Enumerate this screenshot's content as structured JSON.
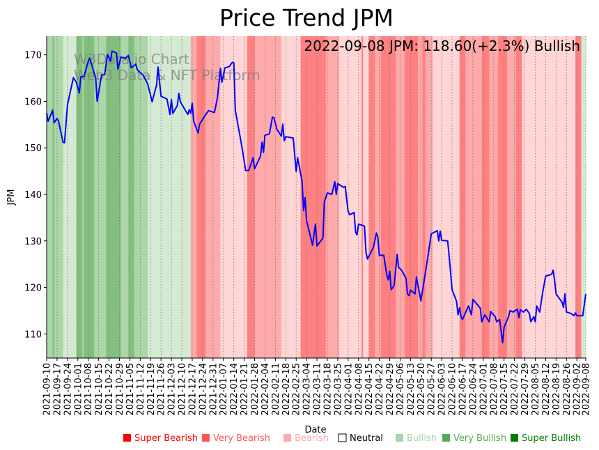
{
  "chart_data": {
    "type": "line",
    "title": "Price Trend JPM",
    "xlabel": "Date",
    "ylabel": "JPM",
    "annotation": "2022-09-08 JPM: 118.60(+2.3%) Bullish",
    "watermark": [
      "W3Data.io Chart",
      "Web3 Data & NFT Platform"
    ],
    "x_start_date": "2021-09-10",
    "x_end_date": "2022-09-08",
    "x_unit": "days since x_start_date",
    "ylim": [
      104.8,
      174
    ],
    "yticks": [
      110,
      120,
      130,
      140,
      150,
      160,
      170
    ],
    "xtick_labels": [
      "2021-09-10",
      "2021-09-17",
      "2021-09-24",
      "2021-10-01",
      "2021-10-08",
      "2021-10-15",
      "2021-10-22",
      "2021-10-29",
      "2021-11-05",
      "2021-11-12",
      "2021-11-19",
      "2021-11-26",
      "2021-12-03",
      "2021-12-10",
      "2021-12-17",
      "2021-12-24",
      "2021-12-31",
      "2022-01-07",
      "2022-01-14",
      "2022-01-21",
      "2022-01-28",
      "2022-02-04",
      "2022-02-11",
      "2022-02-18",
      "2022-02-25",
      "2022-03-04",
      "2022-03-11",
      "2022-03-18",
      "2022-03-25",
      "2022-04-01",
      "2022-04-08",
      "2022-04-15",
      "2022-04-22",
      "2022-04-29",
      "2022-05-06",
      "2022-05-13",
      "2022-05-20",
      "2022-05-27",
      "2022-06-03",
      "2022-06-10",
      "2022-06-17",
      "2022-06-24",
      "2022-07-01",
      "2022-07-08",
      "2022-07-15",
      "2022-07-22",
      "2022-07-29",
      "2022-08-05",
      "2022-08-12",
      "2022-08-19",
      "2022-08-26",
      "2022-09-02",
      "2022-09-08"
    ],
    "grid": "vertical dotted at x ticks",
    "series": [
      {
        "name": "JPM",
        "color": "#0000ff",
        "points": [
          [
            0,
            157.5
          ],
          [
            1,
            155.7
          ],
          [
            4,
            158.1
          ],
          [
            5,
            155.4
          ],
          [
            7,
            156.3
          ],
          [
            8,
            155.7
          ],
          [
            11,
            151.2
          ],
          [
            12,
            151.1
          ],
          [
            14,
            159.3
          ],
          [
            18,
            165.1
          ],
          [
            20,
            164.1
          ],
          [
            22,
            161.8
          ],
          [
            23,
            165.3
          ],
          [
            25,
            165.3
          ],
          [
            28,
            168.6
          ],
          [
            29,
            169.3
          ],
          [
            33,
            165.0
          ],
          [
            34,
            160.0
          ],
          [
            37,
            165.7
          ],
          [
            39,
            165.7
          ],
          [
            41,
            170.1
          ],
          [
            43,
            168.6
          ],
          [
            44,
            170.8
          ],
          [
            47,
            170.4
          ],
          [
            48,
            166.9
          ],
          [
            50,
            169.5
          ],
          [
            53,
            169.2
          ],
          [
            55,
            169.9
          ],
          [
            57,
            167.2
          ],
          [
            60,
            168.0
          ],
          [
            61,
            166.8
          ],
          [
            65,
            165.6
          ],
          [
            68,
            163.8
          ],
          [
            71,
            159.9
          ],
          [
            74,
            163.5
          ],
          [
            75,
            167.4
          ],
          [
            77,
            161.1
          ],
          [
            81,
            160.5
          ],
          [
            83,
            157.2
          ],
          [
            84,
            160.4
          ],
          [
            85,
            157.4
          ],
          [
            88,
            159.1
          ],
          [
            89,
            161.7
          ],
          [
            90,
            159.9
          ],
          [
            95,
            157.2
          ],
          [
            96,
            158.2
          ],
          [
            97,
            157.4
          ],
          [
            98,
            159.6
          ],
          [
            99,
            155.7
          ],
          [
            102,
            153.2
          ],
          [
            103,
            155.1
          ],
          [
            106,
            156.6
          ],
          [
            109,
            158.0
          ],
          [
            113,
            157.6
          ],
          [
            115,
            160.8
          ],
          [
            117,
            167.1
          ],
          [
            118,
            164.1
          ],
          [
            120,
            167.2
          ],
          [
            123,
            167.5
          ],
          [
            125,
            168.4
          ],
          [
            126,
            168.3
          ],
          [
            127,
            158.1
          ],
          [
            131,
            151.1
          ],
          [
            132,
            149.1
          ],
          [
            134,
            145.1
          ],
          [
            136,
            145.1
          ],
          [
            139,
            147.9
          ],
          [
            140,
            145.5
          ],
          [
            144,
            148.2
          ],
          [
            145,
            151.2
          ],
          [
            146,
            149.0
          ],
          [
            147,
            152.7
          ],
          [
            150,
            153.0
          ],
          [
            152,
            156.6
          ],
          [
            153,
            156.5
          ],
          [
            155,
            154.0
          ],
          [
            158,
            152.5
          ],
          [
            159,
            155.1
          ],
          [
            160,
            151.5
          ],
          [
            161,
            152.4
          ],
          [
            166,
            152.1
          ],
          [
            168,
            144.9
          ],
          [
            169,
            147.9
          ],
          [
            172,
            142.8
          ],
          [
            173,
            136.5
          ],
          [
            174,
            139.3
          ],
          [
            175,
            134.4
          ],
          [
            179,
            129.1
          ],
          [
            181,
            133.6
          ],
          [
            182,
            128.9
          ],
          [
            186,
            130.6
          ],
          [
            187,
            138.4
          ],
          [
            189,
            140.3
          ],
          [
            192,
            140.0
          ],
          [
            194,
            142.7
          ],
          [
            195,
            140.0
          ],
          [
            196,
            142.3
          ],
          [
            200,
            141.5
          ],
          [
            201,
            141.7
          ],
          [
            203,
            136.4
          ],
          [
            204,
            135.6
          ],
          [
            207,
            136.1
          ],
          [
            208,
            131.9
          ],
          [
            209,
            131.3
          ],
          [
            210,
            133.6
          ],
          [
            214,
            133.2
          ],
          [
            215,
            127.6
          ],
          [
            216,
            126.1
          ],
          [
            220,
            128.6
          ],
          [
            222,
            131.7
          ],
          [
            223,
            130.8
          ],
          [
            224,
            126.9
          ],
          [
            227,
            126.9
          ],
          [
            229,
            122.7
          ],
          [
            230,
            121.6
          ],
          [
            231,
            123.5
          ],
          [
            232,
            119.5
          ],
          [
            234,
            120.4
          ],
          [
            236,
            127.1
          ],
          [
            237,
            124.3
          ],
          [
            239,
            123.7
          ],
          [
            242,
            121.9
          ],
          [
            243,
            118.6
          ],
          [
            244,
            118.2
          ],
          [
            245,
            119.4
          ],
          [
            248,
            118.6
          ],
          [
            249,
            122.2
          ],
          [
            252,
            117.1
          ],
          [
            255,
            123.1
          ],
          [
            257,
            127.3
          ],
          [
            259,
            131.5
          ],
          [
            263,
            132.2
          ],
          [
            264,
            130.0
          ],
          [
            265,
            132.1
          ],
          [
            266,
            130.1
          ],
          [
            270,
            130.0
          ],
          [
            271,
            126.8
          ],
          [
            273,
            119.5
          ],
          [
            276,
            117.0
          ],
          [
            277,
            114.1
          ],
          [
            278,
            115.6
          ],
          [
            279,
            113.7
          ],
          [
            280,
            113.1
          ],
          [
            284,
            116.0
          ],
          [
            286,
            114.1
          ],
          [
            287,
            117.4
          ],
          [
            290,
            116.3
          ],
          [
            292,
            115.5
          ],
          [
            293,
            112.6
          ],
          [
            295,
            114.1
          ],
          [
            298,
            112.6
          ],
          [
            299,
            114.8
          ],
          [
            302,
            113.7
          ],
          [
            303,
            112.6
          ],
          [
            305,
            113.1
          ],
          [
            307,
            108.1
          ],
          [
            308,
            111.4
          ],
          [
            311,
            113.7
          ],
          [
            312,
            115.0
          ],
          [
            314,
            114.7
          ],
          [
            317,
            115.3
          ],
          [
            318,
            113.5
          ],
          [
            319,
            115.2
          ],
          [
            321,
            114.7
          ],
          [
            323,
            115.3
          ],
          [
            325,
            114.4
          ],
          [
            326,
            112.6
          ],
          [
            328,
            113.7
          ],
          [
            329,
            112.6
          ],
          [
            330,
            116.0
          ],
          [
            332,
            114.7
          ],
          [
            334,
            119.0
          ],
          [
            336,
            122.4
          ],
          [
            340,
            122.8
          ],
          [
            341,
            123.7
          ],
          [
            342,
            121.6
          ],
          [
            343,
            118.6
          ],
          [
            347,
            116.8
          ],
          [
            348,
            115.7
          ],
          [
            349,
            118.6
          ],
          [
            350,
            114.7
          ],
          [
            353,
            114.4
          ],
          [
            355,
            113.9
          ],
          [
            356,
            114.5
          ],
          [
            357,
            113.9
          ],
          [
            361,
            113.9
          ],
          [
            363,
            118.6
          ]
        ]
      }
    ],
    "sentiment_bands": [
      [
        0,
        4,
        "Very Bullish"
      ],
      [
        4,
        5,
        "Super Bullish"
      ],
      [
        5,
        11,
        "Very Bullish"
      ],
      [
        11,
        20,
        "Bullish"
      ],
      [
        20,
        24,
        "Super Bullish"
      ],
      [
        24,
        25,
        "Very Bullish"
      ],
      [
        25,
        32,
        "Super Bullish"
      ],
      [
        32,
        40,
        "Very Bullish"
      ],
      [
        40,
        50,
        "Super Bullish"
      ],
      [
        50,
        55,
        "Very Bullish"
      ],
      [
        55,
        59,
        "Super Bullish"
      ],
      [
        59,
        68,
        "Very Bullish"
      ],
      [
        68,
        97,
        "Bullish"
      ],
      [
        97,
        101,
        "Very Bearish"
      ],
      [
        101,
        107,
        "Super Bearish"
      ],
      [
        107,
        117,
        "Very Bearish"
      ],
      [
        117,
        135,
        "Bearish"
      ],
      [
        135,
        140,
        "Super Bearish"
      ],
      [
        140,
        158,
        "Very Bearish"
      ],
      [
        158,
        171,
        "Bearish"
      ],
      [
        171,
        188,
        "Super Bearish"
      ],
      [
        188,
        197,
        "Very Bearish"
      ],
      [
        197,
        212,
        "Bearish"
      ],
      [
        212,
        213,
        "Super Bearish"
      ],
      [
        213,
        217,
        "Bearish"
      ],
      [
        217,
        221,
        "Super Bearish"
      ],
      [
        221,
        225,
        "Very Bearish"
      ],
      [
        225,
        235,
        "Super Bearish"
      ],
      [
        235,
        241,
        "Very Bearish"
      ],
      [
        241,
        250,
        "Super Bearish"
      ],
      [
        250,
        253,
        "Very Bearish"
      ],
      [
        253,
        255,
        "Super Bearish"
      ],
      [
        255,
        260,
        "Very Bearish"
      ],
      [
        260,
        278,
        "Bearish"
      ],
      [
        278,
        282,
        "Super Bearish"
      ],
      [
        282,
        293,
        "Very Bearish"
      ],
      [
        293,
        298,
        "Super Bearish"
      ],
      [
        298,
        304,
        "Very Bearish"
      ],
      [
        304,
        310,
        "Super Bearish"
      ],
      [
        310,
        316,
        "Very Bearish"
      ],
      [
        316,
        320,
        "Super Bearish"
      ],
      [
        320,
        356,
        "Bearish"
      ],
      [
        356,
        360,
        "Super Bearish"
      ],
      [
        360,
        363,
        "Bullish"
      ]
    ],
    "band_colors": {
      "Super Bearish": "#ff8080",
      "Very Bearish": "#ffaaaa",
      "Bearish": "#ffd5d5",
      "Bullish": "#d5ead3",
      "Very Bullish": "#acd5a8",
      "Super Bullish": "#82bf7e"
    },
    "legend": {
      "placement": "bottom-right",
      "items": [
        {
          "label": "Super Bearish",
          "color": "#ff0000"
        },
        {
          "label": "Very Bearish",
          "color": "#ff5555"
        },
        {
          "label": "Bearish",
          "color": "#ffaaaa"
        },
        {
          "label": "Neutral",
          "color": "#ffffff",
          "text_color": "#000000"
        },
        {
          "label": "Bullish",
          "color": "#aad4aa"
        },
        {
          "label": "Very Bullish",
          "color": "#55aa55"
        },
        {
          "label": "Super Bullish",
          "color": "#008000"
        }
      ]
    }
  }
}
